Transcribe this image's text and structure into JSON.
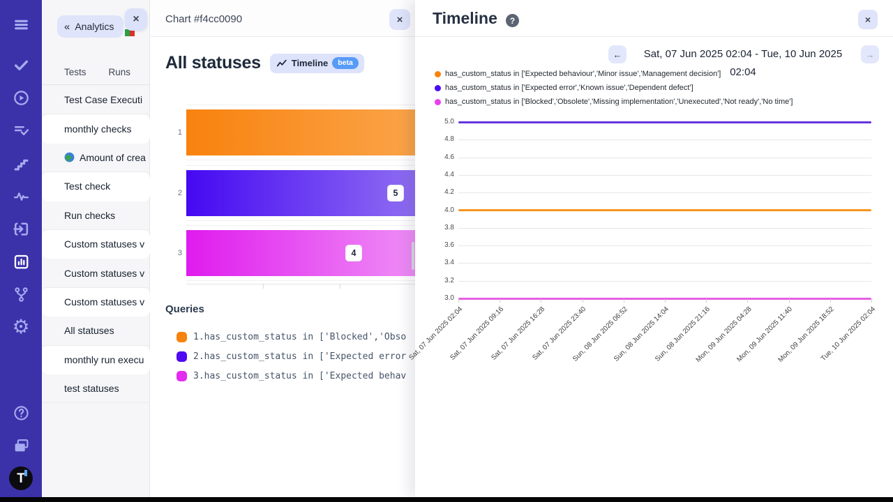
{
  "rail": {
    "icons": [
      {
        "name": "menu"
      },
      {
        "name": "check"
      },
      {
        "name": "play"
      },
      {
        "name": "list-check"
      },
      {
        "name": "steps"
      },
      {
        "name": "pulse"
      },
      {
        "name": "enter"
      },
      {
        "name": "bar-chart",
        "active": true
      },
      {
        "name": "branch"
      },
      {
        "name": "gear"
      }
    ],
    "bottom_icons": [
      {
        "name": "help"
      },
      {
        "name": "folders"
      },
      {
        "name": "logo-t"
      }
    ]
  },
  "subpanel": {
    "back_button": {
      "chevrons": "«",
      "label": "Analytics"
    },
    "close_label": "×",
    "flag_colors": [
      "#2f9e44",
      "#d7342a"
    ],
    "tabs": [
      {
        "label": "Tests"
      },
      {
        "label": "Runs"
      }
    ],
    "items": [
      {
        "label": "Test Case Executi",
        "card": false
      },
      {
        "label": "monthly checks",
        "card": true
      },
      {
        "label": "Amount of crea",
        "card": false,
        "icon": "globe"
      },
      {
        "label": "Test check",
        "card": true
      },
      {
        "label": "Run checks",
        "card": false
      },
      {
        "label": "Custom statuses v",
        "card": true
      },
      {
        "label": "Custom statuses v",
        "card": false
      },
      {
        "label": "Custom statuses v",
        "card": true
      },
      {
        "label": "All statuses",
        "card": false
      },
      {
        "label": "monthly run execu",
        "card": true
      },
      {
        "label": "test statuses",
        "card": false
      }
    ]
  },
  "chart_panel": {
    "header": "Chart #f4cc0090",
    "close_label": "×",
    "title": "All statuses",
    "badge": {
      "icon": "trend-line",
      "label": "Timeline",
      "beta": "beta"
    },
    "queries_title": "Queries",
    "queries": [
      {
        "color": "#f8820e",
        "text": "1.has_custom_status in ['Blocked','Obso"
      },
      {
        "color": "#5009f2",
        "text": "2.has_custom_status in ['Expected error"
      },
      {
        "color": "#e32cf0",
        "text": "3.has_custom_status in ['Expected behav"
      }
    ]
  },
  "timeline_panel": {
    "title": "Timeline",
    "help_label": "?",
    "close_label": "×",
    "nav": {
      "prev": "←",
      "next": "→",
      "date_range": "Sat, 07 Jun 2025 02:04 - Tue, 10 Jun 2025 02:04"
    },
    "legend": [
      {
        "color": "#f9820b",
        "text": "has_custom_status in ['Expected behaviour','Minor issue','Management decision']"
      },
      {
        "color": "#4a0df2",
        "text": "has_custom_status in ['Expected error','Known issue','Dependent defect']"
      },
      {
        "color": "#ea3ff0",
        "text": "has_custom_status in ['Blocked','Obsolete','Missing implementation','Unexecuted','Not ready','No time']"
      }
    ]
  },
  "chart_data": [
    {
      "type": "bar",
      "orientation": "horizontal",
      "title": "All statuses",
      "categories": [
        "1",
        "2",
        "3"
      ],
      "values": [
        null,
        5,
        4
      ],
      "value_labels": [
        "",
        "5",
        "4"
      ],
      "bar_colors": [
        [
          "#f8820e",
          "#fba448"
        ],
        [
          "#4509f2",
          "#8f6df2"
        ],
        [
          "#df1bee",
          "#ef8df6"
        ]
      ],
      "note": "bars are clipped on the right by the overlaying Timeline panel; bar 1 value label not visible",
      "xlabel": "",
      "ylabel": ""
    },
    {
      "type": "line",
      "title": "Timeline",
      "x": [
        "Sat, 07 Jun 2025 02:04",
        "Sat, 07 Jun 2025 09:16",
        "Sat, 07 Jun 2025 16:28",
        "Sat, 07 Jun 2025 23:40",
        "Sun, 08 Jun 2025 06:52",
        "Sun, 08 Jun 2025 14:04",
        "Sun, 08 Jun 2025 21:16",
        "Mon, 09 Jun 2025 04:28",
        "Mon, 09 Jun 2025 11:40",
        "Mon, 09 Jun 2025 18:52",
        "Tue, 10 Jun 2025 02:04"
      ],
      "series": [
        {
          "name": "has_custom_status in ['Expected error','Known issue','Dependent defect']",
          "color": "#6633dd",
          "value": 5.0
        },
        {
          "name": "has_custom_status in ['Expected behaviour','Minor issue','Management decision']",
          "color": "#f8951e",
          "value": 4.0
        },
        {
          "name": "has_custom_status in ['Blocked','Obsolete','Missing implementation','Unexecuted','Not ready','No time']",
          "color": "#e55fe2",
          "value": 3.0
        }
      ],
      "ylim": [
        3.0,
        5.0
      ],
      "ytick_step": 0.2,
      "grid": true,
      "legend_position": "top-left",
      "xlabel": "",
      "ylabel": ""
    }
  ]
}
